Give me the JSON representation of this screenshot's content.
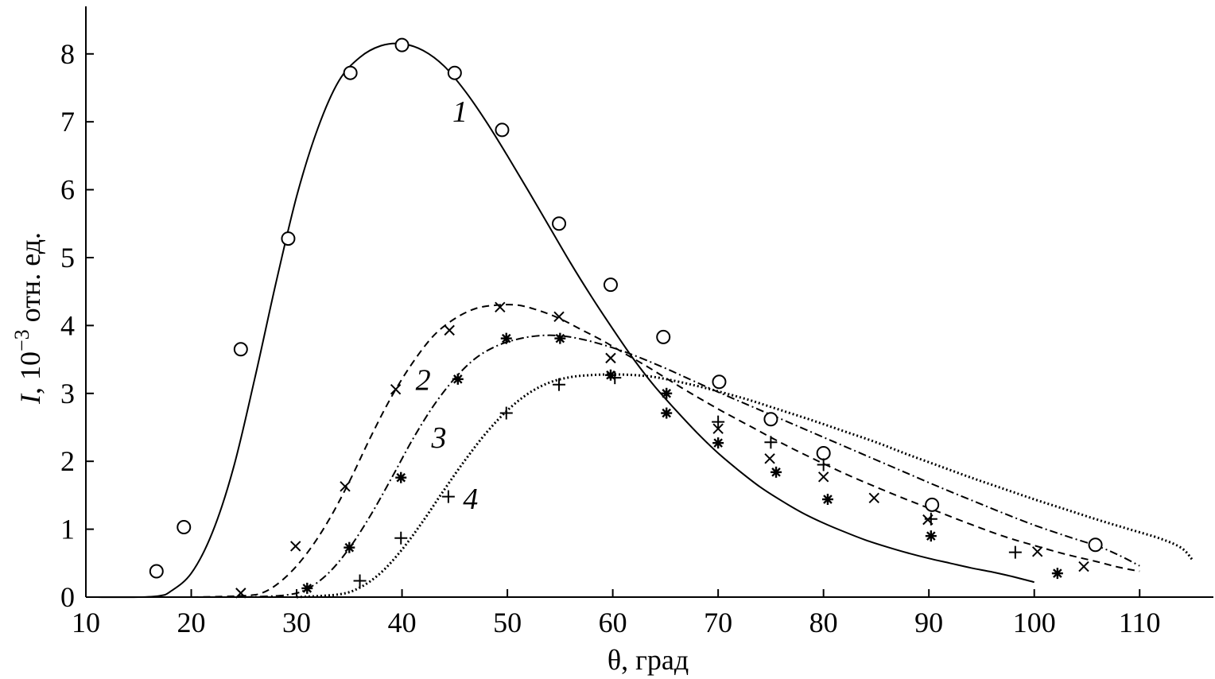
{
  "chart_data": {
    "type": "line",
    "title": "",
    "xlabel": "θ, град",
    "ylabel_italic": "I",
    "ylabel_rest": ", 10",
    "ylabel_exp": "−3",
    "ylabel_unit": " отн. ед.",
    "xlim": [
      10,
      117
    ],
    "ylim": [
      0,
      8.7
    ],
    "xticks": [
      10,
      20,
      30,
      40,
      50,
      60,
      70,
      80,
      90,
      100,
      110
    ],
    "yticks": [
      0,
      1,
      2,
      3,
      4,
      5,
      6,
      7,
      8
    ],
    "grid": false,
    "series": [
      {
        "name": "1",
        "label": "1",
        "label_pos": [
          45.5,
          7.0
        ],
        "style": "solid",
        "marker": "circle",
        "curve": [
          [
            10,
            0
          ],
          [
            15,
            0
          ],
          [
            17,
            0.02
          ],
          [
            18,
            0.08
          ],
          [
            20,
            0.35
          ],
          [
            22,
            0.95
          ],
          [
            24,
            1.9
          ],
          [
            26,
            3.2
          ],
          [
            28,
            4.6
          ],
          [
            30,
            5.9
          ],
          [
            32,
            6.9
          ],
          [
            34,
            7.6
          ],
          [
            36,
            7.95
          ],
          [
            38,
            8.12
          ],
          [
            40,
            8.15
          ],
          [
            42,
            8.05
          ],
          [
            44,
            7.82
          ],
          [
            46,
            7.45
          ],
          [
            48,
            7.0
          ],
          [
            50,
            6.5
          ],
          [
            52,
            5.98
          ],
          [
            54,
            5.45
          ],
          [
            56,
            4.92
          ],
          [
            58,
            4.42
          ],
          [
            60,
            3.95
          ],
          [
            62,
            3.5
          ],
          [
            64,
            3.1
          ],
          [
            66,
            2.75
          ],
          [
            68,
            2.42
          ],
          [
            70,
            2.12
          ],
          [
            72,
            1.86
          ],
          [
            74,
            1.62
          ],
          [
            76,
            1.42
          ],
          [
            78,
            1.24
          ],
          [
            80,
            1.09
          ],
          [
            82,
            0.96
          ],
          [
            84,
            0.84
          ],
          [
            86,
            0.74
          ],
          [
            88,
            0.65
          ],
          [
            90,
            0.57
          ],
          [
            92,
            0.5
          ],
          [
            94,
            0.43
          ],
          [
            96,
            0.37
          ],
          [
            98,
            0.3
          ],
          [
            100,
            0.22
          ]
        ],
        "points": [
          [
            16.7,
            0.38
          ],
          [
            19.3,
            1.03
          ],
          [
            24.7,
            3.65
          ],
          [
            29.2,
            5.28
          ],
          [
            35.1,
            7.72
          ],
          [
            40.0,
            8.13
          ],
          [
            45.0,
            7.72
          ],
          [
            49.5,
            6.88
          ],
          [
            54.9,
            5.5
          ],
          [
            59.8,
            4.6
          ],
          [
            64.8,
            3.83
          ],
          [
            70.1,
            3.17
          ],
          [
            75.0,
            2.62
          ],
          [
            80.0,
            2.12
          ],
          [
            90.3,
            1.36
          ],
          [
            105.8,
            0.77
          ]
        ]
      },
      {
        "name": "2",
        "label": "2",
        "label_pos": [
          42.0,
          3.05
        ],
        "style": "dashed",
        "marker": "x",
        "curve": [
          [
            20,
            0
          ],
          [
            25,
            0.02
          ],
          [
            27,
            0.08
          ],
          [
            29,
            0.3
          ],
          [
            31,
            0.65
          ],
          [
            33,
            1.12
          ],
          [
            35,
            1.7
          ],
          [
            37,
            2.35
          ],
          [
            39,
            2.95
          ],
          [
            41,
            3.45
          ],
          [
            43,
            3.85
          ],
          [
            45,
            4.1
          ],
          [
            47,
            4.25
          ],
          [
            49,
            4.3
          ],
          [
            51,
            4.3
          ],
          [
            53,
            4.22
          ],
          [
            55,
            4.1
          ],
          [
            57,
            3.94
          ],
          [
            59,
            3.78
          ],
          [
            61,
            3.6
          ],
          [
            63,
            3.42
          ],
          [
            65,
            3.23
          ],
          [
            67,
            3.04
          ],
          [
            70,
            2.77
          ],
          [
            73,
            2.52
          ],
          [
            76,
            2.27
          ],
          [
            79,
            2.04
          ],
          [
            82,
            1.82
          ],
          [
            85,
            1.62
          ],
          [
            88,
            1.43
          ],
          [
            91,
            1.25
          ],
          [
            94,
            1.07
          ],
          [
            97,
            0.9
          ],
          [
            100,
            0.76
          ],
          [
            103,
            0.63
          ],
          [
            106,
            0.52
          ],
          [
            108,
            0.44
          ],
          [
            110,
            0.38
          ]
        ],
        "points": [
          [
            24.7,
            0.06
          ],
          [
            29.9,
            0.75
          ],
          [
            34.6,
            1.63
          ],
          [
            39.4,
            3.06
          ],
          [
            44.5,
            3.93
          ],
          [
            49.3,
            4.27
          ],
          [
            54.9,
            4.13
          ],
          [
            59.8,
            3.52
          ],
          [
            70.0,
            2.48
          ],
          [
            74.9,
            2.04
          ],
          [
            80.0,
            1.77
          ],
          [
            84.8,
            1.46
          ],
          [
            89.9,
            1.14
          ],
          [
            100.3,
            0.67
          ],
          [
            104.7,
            0.45
          ]
        ]
      },
      {
        "name": "3",
        "label": "3",
        "label_pos": [
          43.5,
          2.2
        ],
        "style": "dashdot",
        "marker": "asterisk",
        "curve": [
          [
            25,
            0
          ],
          [
            29,
            0.03
          ],
          [
            31,
            0.12
          ],
          [
            33,
            0.35
          ],
          [
            35,
            0.72
          ],
          [
            37,
            1.2
          ],
          [
            39,
            1.75
          ],
          [
            41,
            2.32
          ],
          [
            43,
            2.82
          ],
          [
            45,
            3.22
          ],
          [
            47,
            3.52
          ],
          [
            49,
            3.7
          ],
          [
            51,
            3.8
          ],
          [
            53,
            3.85
          ],
          [
            55,
            3.85
          ],
          [
            57,
            3.8
          ],
          [
            59,
            3.72
          ],
          [
            61,
            3.62
          ],
          [
            63,
            3.5
          ],
          [
            65,
            3.37
          ],
          [
            67,
            3.23
          ],
          [
            70,
            3.02
          ],
          [
            73,
            2.82
          ],
          [
            76,
            2.62
          ],
          [
            79,
            2.42
          ],
          [
            82,
            2.22
          ],
          [
            85,
            2.02
          ],
          [
            88,
            1.82
          ],
          [
            91,
            1.62
          ],
          [
            94,
            1.43
          ],
          [
            97,
            1.24
          ],
          [
            100,
            1.06
          ],
          [
            103,
            0.9
          ],
          [
            106,
            0.75
          ],
          [
            108,
            0.62
          ],
          [
            110,
            0.46
          ]
        ],
        "points": [
          [
            31.0,
            0.13
          ],
          [
            35.0,
            0.73
          ],
          [
            39.9,
            1.76
          ],
          [
            45.3,
            3.21
          ],
          [
            49.9,
            3.81
          ],
          [
            55.0,
            3.81
          ],
          [
            59.8,
            3.27
          ],
          [
            65.1,
            3.0
          ],
          [
            65.1,
            2.71
          ],
          [
            70.0,
            2.27
          ],
          [
            75.5,
            1.84
          ],
          [
            80.4,
            1.44
          ],
          [
            90.2,
            0.9
          ],
          [
            102.2,
            0.35
          ]
        ]
      },
      {
        "name": "4",
        "label": "4",
        "label_pos": [
          46.5,
          1.3
        ],
        "style": "dotted",
        "marker": "plus",
        "curve": [
          [
            30,
            0
          ],
          [
            34,
            0.04
          ],
          [
            36,
            0.14
          ],
          [
            38,
            0.36
          ],
          [
            40,
            0.7
          ],
          [
            42,
            1.12
          ],
          [
            44,
            1.58
          ],
          [
            46,
            2.02
          ],
          [
            48,
            2.42
          ],
          [
            50,
            2.75
          ],
          [
            52,
            3.0
          ],
          [
            54,
            3.16
          ],
          [
            56,
            3.24
          ],
          [
            58,
            3.27
          ],
          [
            60,
            3.28
          ],
          [
            62,
            3.27
          ],
          [
            64,
            3.24
          ],
          [
            66,
            3.18
          ],
          [
            68,
            3.11
          ],
          [
            70,
            3.03
          ],
          [
            73,
            2.9
          ],
          [
            76,
            2.75
          ],
          [
            79,
            2.6
          ],
          [
            82,
            2.44
          ],
          [
            85,
            2.28
          ],
          [
            88,
            2.1
          ],
          [
            91,
            1.93
          ],
          [
            94,
            1.76
          ],
          [
            97,
            1.6
          ],
          [
            100,
            1.44
          ],
          [
            103,
            1.29
          ],
          [
            106,
            1.14
          ],
          [
            109,
            1.0
          ],
          [
            112,
            0.86
          ],
          [
            114,
            0.72
          ],
          [
            115,
            0.55
          ]
        ],
        "points": [
          [
            36.0,
            0.24
          ],
          [
            39.9,
            0.87
          ],
          [
            44.4,
            1.48
          ],
          [
            49.9,
            2.71
          ],
          [
            54.9,
            3.13
          ],
          [
            60.2,
            3.23
          ],
          [
            70.0,
            2.58
          ],
          [
            75.0,
            2.28
          ],
          [
            80.0,
            1.95
          ],
          [
            90.2,
            1.15
          ],
          [
            98.2,
            0.66
          ]
        ]
      }
    ]
  }
}
